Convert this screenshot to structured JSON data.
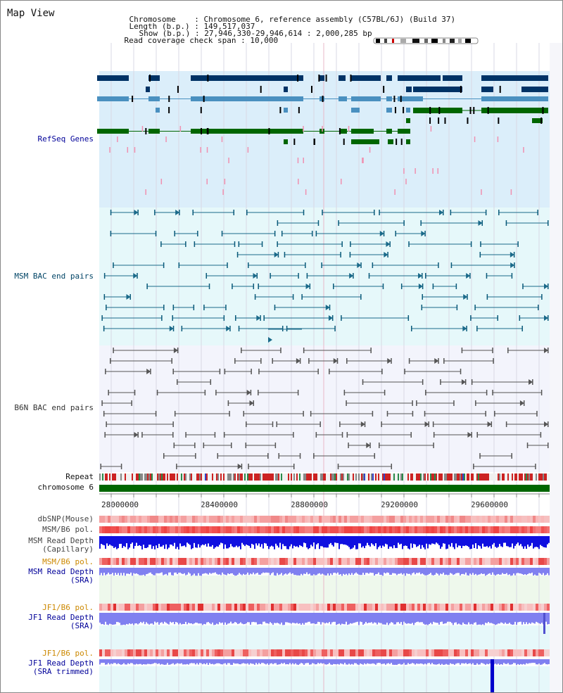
{
  "page_title": "Map View",
  "info": {
    "chromosome_key": "Chromosome",
    "chromosome_val": "Chromosome 6, reference assembly (C57BL/6J) (Build 37)",
    "length_key": "Length (b.p.)",
    "length_val": "149,517,037",
    "show_key": "Show (b.p.)",
    "show_val": "27,946,330-29,946,614 : 2,000,285 bp",
    "coverage_key": "Read coverage check span",
    "coverage_val": "10,000"
  },
  "tracks": {
    "refseq": "RefSeq Genes",
    "msm_bac": "MSM BAC end pairs",
    "b6n_bac": "B6N BAC end pairs",
    "repeat": "Repeat",
    "chromosome": "chromosome 6",
    "dbsnp": "dbSNP(Mouse)",
    "msm_b6_pol_1": "MSM/B6 pol.",
    "msm_depth_cap_1": "MSM Read Depth",
    "msm_depth_cap_2": "(Capillary)",
    "msm_b6_pol_2": "MSM/B6 pol.",
    "msm_depth_sra_1": "MSM Read Depth",
    "msm_depth_sra_2": "(SRA)",
    "jf1_pol_1": "JF1/B6 pol.",
    "jf1_depth_1": "JF1 Read Depth",
    "jf1_depth_2": "(SRA)",
    "jf1_pol_2": "JF1/B6 pol.",
    "jf1_trim_1": "JF1 Read Depth",
    "jf1_trim_2": "(SRA trimmed)"
  },
  "ruler": {
    "ticks": [
      "28000000",
      "28400000",
      "28800000",
      "29200000",
      "29600000"
    ]
  },
  "colors": {
    "refseq_bg": "#dbeefa",
    "msm_bg": "#e6f8fa",
    "b6n_bg": "#f3f4fc",
    "gene_dark": "#003366",
    "gene_mid": "#4a90c0",
    "gene_green": "#006600",
    "bac_msm": "#1a6a8a",
    "bac_b6n": "#555555",
    "chromosome_bar": "#006600",
    "depth_blue": "#1010e0",
    "depth_violet": "#8080f0",
    "label_blue": "#000099",
    "label_teal": "#004488",
    "label_orange": "#cc8800"
  }
}
